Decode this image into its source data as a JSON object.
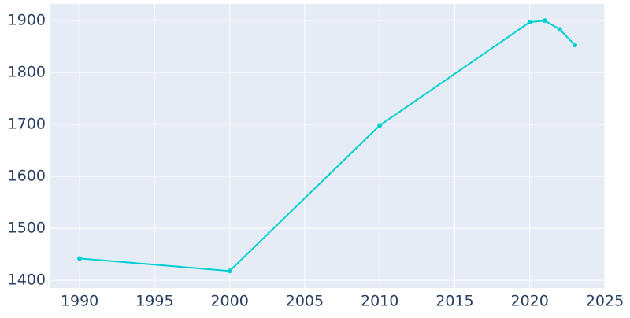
{
  "chart_data": {
    "type": "line",
    "x": [
      1990,
      2000,
      2010,
      2020,
      2021,
      2022,
      2023
    ],
    "series": [
      {
        "color": "#00cfd1",
        "values": [
          1442,
          1418,
          1698,
          1897,
          1900,
          1883,
          1853
        ]
      }
    ],
    "xlim": [
      1988,
      2025
    ],
    "xticks": [
      1990,
      1995,
      2000,
      2005,
      2010,
      2015,
      2020,
      2025
    ],
    "ylim": [
      1385,
      1932
    ],
    "yticks": [
      1400,
      1500,
      1600,
      1700,
      1800,
      1900
    ],
    "grid": true
  }
}
